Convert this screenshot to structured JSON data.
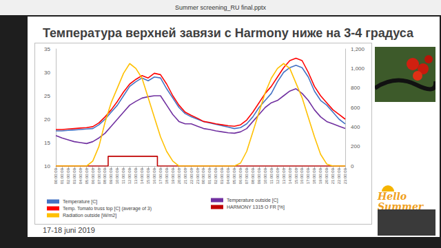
{
  "window_title": "Summer screening_RU final.pptx",
  "footer": "17-18 juni 2019",
  "logo": "Hello Summer",
  "chart_data": {
    "type": "line",
    "title": "Температура верхней завязи с Harmony ниже на 3-4 градуса",
    "categories": [
      "00:00:00",
      "01:00:00",
      "02:00:00",
      "03:00:00",
      "04:00:00",
      "05:00:00",
      "06:00:00",
      "07:00:00",
      "08:00:00",
      "09:00:00",
      "10:00:00",
      "11:00:00",
      "12:00:00",
      "13:00:00",
      "14:00:00",
      "15:00:00",
      "16:00:00",
      "17:00:00",
      "18:00:00",
      "19:00:00",
      "20:00:00",
      "21:00:00",
      "22:00:00",
      "23:00:00",
      "00:00:00",
      "01:00:00",
      "02:00:00",
      "03:00:00",
      "04:00:00",
      "05:00:00",
      "06:00:00",
      "07:00:00",
      "08:00:00",
      "09:00:00",
      "10:00:00",
      "11:00:00",
      "12:00:00",
      "13:00:00",
      "14:00:00",
      "15:00:00",
      "16:00:00",
      "17:00:00",
      "18:00:00",
      "19:00:00",
      "20:00:00",
      "21:00:00",
      "22:00:00",
      "23:00:00"
    ],
    "series": [
      {
        "name": "Temperature [C]",
        "color": "#4472c4",
        "values": [
          17.5,
          17.5,
          17.6,
          17.7,
          17.8,
          17.9,
          18.0,
          18.8,
          20.0,
          21.5,
          23.0,
          25.0,
          27.0,
          28.0,
          28.8,
          28.2,
          29.0,
          28.8,
          26.5,
          24.5,
          22.5,
          21.2,
          20.5,
          20.0,
          19.5,
          19.2,
          18.9,
          18.6,
          18.3,
          18.0,
          18.2,
          19.0,
          20.5,
          22.5,
          24.0,
          25.5,
          28.0,
          30.0,
          31.0,
          31.5,
          31.0,
          29.0,
          26.0,
          24.0,
          23.0,
          21.5,
          20.0,
          19.0
        ]
      },
      {
        "name": "Temperature outside [C]",
        "color": "#7030a0",
        "values": [
          16.5,
          16.0,
          15.6,
          15.2,
          15.0,
          14.8,
          15.2,
          16.0,
          17.0,
          18.5,
          20.0,
          21.5,
          23.0,
          23.8,
          24.5,
          24.8,
          25.0,
          25.0,
          23.0,
          21.0,
          19.5,
          19.0,
          19.0,
          18.5,
          18.0,
          17.8,
          17.5,
          17.3,
          17.1,
          17.0,
          17.3,
          18.0,
          19.5,
          21.0,
          22.5,
          23.5,
          24.0,
          25.0,
          26.0,
          26.5,
          25.5,
          24.0,
          22.0,
          20.5,
          19.5,
          19.0,
          18.5,
          18.0
        ]
      },
      {
        "name": "Temp. Tomato truss top [C] (average of 3)",
        "color": "#ff0000",
        "values": [
          17.8,
          17.8,
          17.9,
          18.0,
          18.1,
          18.2,
          18.4,
          19.2,
          20.5,
          22.0,
          23.8,
          25.8,
          27.5,
          28.5,
          29.3,
          28.8,
          29.8,
          29.5,
          27.5,
          25.0,
          23.0,
          21.5,
          20.8,
          20.2,
          19.5,
          19.3,
          19.0,
          18.8,
          18.6,
          18.5,
          18.8,
          19.8,
          21.5,
          23.5,
          25.5,
          27.0,
          29.0,
          31.0,
          32.5,
          33.0,
          32.5,
          30.0,
          27.0,
          25.0,
          23.5,
          22.0,
          21.0,
          20.0
        ]
      },
      {
        "name": "HARMONY 1315 O FR [%]",
        "color": "#c00000",
        "axis": "y2",
        "line_style": "step",
        "values": [
          0,
          0,
          0,
          0,
          0,
          0,
          0,
          0,
          0,
          100,
          100,
          100,
          100,
          100,
          100,
          100,
          100,
          0,
          0,
          0,
          0,
          0,
          0,
          0,
          0,
          0,
          0,
          0,
          0,
          0,
          0,
          0,
          0,
          0,
          0,
          0,
          0,
          0,
          0,
          0,
          0,
          0,
          0,
          0,
          0,
          0,
          0,
          0
        ]
      },
      {
        "name": "Radiation outside [W/m2]",
        "color": "#ffc000",
        "axis": "y2",
        "values": [
          0,
          0,
          0,
          0,
          0,
          0,
          50,
          200,
          450,
          650,
          800,
          950,
          1050,
          1000,
          900,
          700,
          500,
          300,
          150,
          50,
          0,
          0,
          0,
          0,
          0,
          0,
          0,
          0,
          0,
          0,
          30,
          150,
          350,
          550,
          750,
          900,
          1000,
          1050,
          1000,
          850,
          700,
          500,
          300,
          120,
          20,
          0,
          0,
          0
        ]
      }
    ],
    "ylim": [
      10,
      35
    ],
    "yticks": [
      10,
      15,
      20,
      25,
      30,
      35
    ],
    "y2lim": [
      0,
      1200
    ],
    "y2ticks": [
      0,
      200,
      400,
      600,
      800,
      1000,
      1200
    ],
    "grid": false,
    "legend": "bottom"
  }
}
